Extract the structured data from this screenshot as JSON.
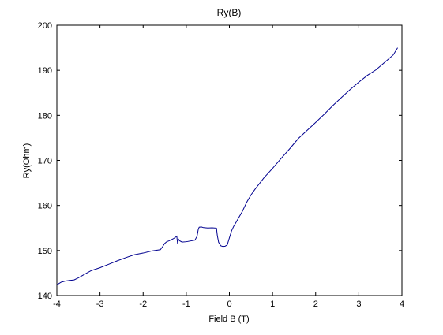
{
  "chart_data": {
    "type": "line",
    "title": "Ry(B)",
    "xlabel": "Field B (T)",
    "ylabel": "Ry(Ohm)",
    "xlim": [
      -4,
      4
    ],
    "ylim": [
      140,
      200
    ],
    "xticks": [
      "-4",
      "-3",
      "-2",
      "-1",
      "0",
      "1",
      "2",
      "3",
      "4"
    ],
    "yticks": [
      "140",
      "150",
      "160",
      "170",
      "180",
      "190",
      "200"
    ],
    "grid": false,
    "legend": "none",
    "line_color": "#00008f",
    "series": [
      {
        "x": [
          -4.0,
          -3.9,
          -3.8,
          -3.7,
          -3.6,
          -3.5,
          -3.4,
          -3.3,
          -3.2,
          -3.0,
          -2.8,
          -2.6,
          -2.4,
          -2.2,
          -2.0,
          -1.8,
          -1.6,
          -1.55,
          -1.5,
          -1.45,
          -1.4,
          -1.35,
          -1.3,
          -1.25,
          -1.22,
          -1.2,
          -1.18,
          -1.15,
          -1.1,
          -1.0,
          -0.9,
          -0.8,
          -0.75,
          -0.72,
          -0.7,
          -0.65,
          -0.6,
          -0.5,
          -0.4,
          -0.3,
          -0.28,
          -0.25,
          -0.2,
          -0.15,
          -0.1,
          -0.05,
          0.0,
          0.05,
          0.1,
          0.15,
          0.2,
          0.3,
          0.4,
          0.5,
          0.6,
          0.8,
          1.0,
          1.2,
          1.4,
          1.6,
          1.8,
          2.0,
          2.2,
          2.4,
          2.6,
          2.8,
          3.0,
          3.2,
          3.4,
          3.6,
          3.8,
          3.9
        ],
        "y": [
          142.4,
          142.9,
          143.1,
          143.2,
          143.3,
          143.8,
          144.4,
          145.0,
          145.6,
          146.3,
          147.1,
          147.9,
          148.6,
          149.2,
          149.5,
          149.9,
          150.1,
          150.7,
          151.4,
          151.8,
          152.0,
          152.3,
          152.6,
          153.0,
          153.3,
          151.6,
          152.7,
          152.3,
          152.0,
          152.0,
          152.1,
          152.2,
          153.0,
          154.6,
          155.0,
          155.1,
          155.0,
          155.0,
          155.1,
          155.1,
          153.5,
          152.0,
          151.2,
          151.0,
          151.0,
          151.2,
          152.7,
          154.2,
          155.2,
          156.0,
          156.9,
          158.6,
          160.7,
          162.4,
          163.8,
          166.3,
          168.4,
          170.6,
          172.7,
          174.9,
          176.6,
          178.3,
          180.1,
          182.0,
          183.8,
          185.6,
          187.3,
          188.9,
          190.2,
          191.9,
          193.6,
          195.0
        ]
      }
    ]
  }
}
